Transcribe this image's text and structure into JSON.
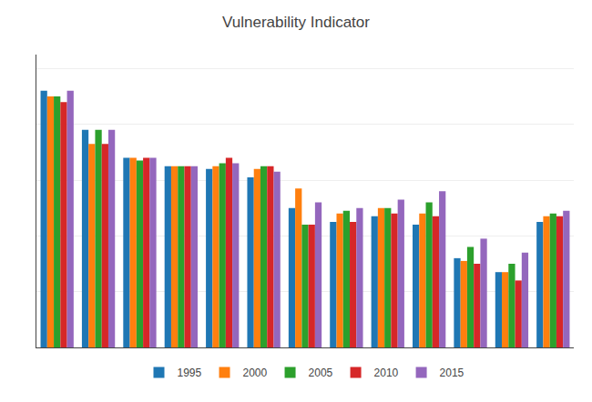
{
  "chart_data": {
    "type": "bar",
    "title": "Vulnerability Indicator",
    "categories": [
      null,
      null,
      null,
      null,
      null,
      null,
      null,
      null,
      null,
      null,
      null,
      null,
      null
    ],
    "series": [
      {
        "name": "1995",
        "values": [
          0.92,
          0.78,
          0.68,
          0.65,
          0.64,
          0.61,
          0.5,
          0.45,
          0.47,
          0.44,
          0.32,
          0.27,
          0.45
        ]
      },
      {
        "name": "2000",
        "values": [
          0.9,
          0.73,
          0.68,
          0.65,
          0.65,
          0.64,
          0.57,
          0.48,
          0.5,
          0.48,
          0.31,
          0.27,
          0.47
        ]
      },
      {
        "name": "2005",
        "values": [
          0.9,
          0.78,
          0.67,
          0.65,
          0.66,
          0.65,
          0.44,
          0.49,
          0.5,
          0.52,
          0.36,
          0.3,
          0.48
        ]
      },
      {
        "name": "2010",
        "values": [
          0.88,
          0.73,
          0.68,
          0.65,
          0.68,
          0.65,
          0.44,
          0.45,
          0.48,
          0.47,
          0.3,
          0.24,
          0.47
        ]
      },
      {
        "name": "2015",
        "values": [
          0.92,
          0.78,
          0.68,
          0.65,
          0.66,
          0.63,
          0.52,
          0.5,
          0.53,
          0.56,
          0.39,
          0.34,
          0.49
        ]
      }
    ],
    "ylim": [
      0,
      1.05
    ],
    "yticks": [
      0.2,
      0.4,
      0.6,
      0.8,
      1.0
    ],
    "grid": true,
    "tick_labels": false,
    "legend": "bottom"
  }
}
